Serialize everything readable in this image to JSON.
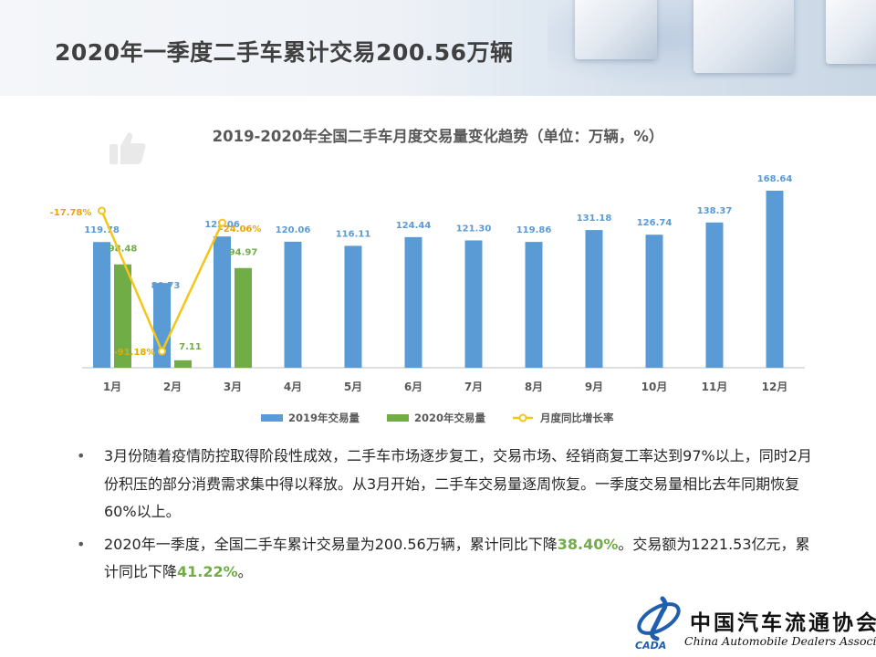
{
  "page": {
    "title": "2020年一季度二手车累计交易200.56万辆"
  },
  "chart_data": {
    "type": "bar",
    "title": "2019-2020年全国二手车月度交易量变化趋势（单位：万辆，%）",
    "categories": [
      "1月",
      "2月",
      "3月",
      "4月",
      "5月",
      "6月",
      "7月",
      "8月",
      "9月",
      "10月",
      "11月",
      "12月"
    ],
    "series": [
      {
        "name": "2019年交易量",
        "type": "bar",
        "color": "#5b9bd5",
        "values": [
          119.78,
          80.73,
          125.06,
          120.06,
          116.11,
          124.44,
          121.3,
          119.86,
          131.18,
          126.74,
          138.37,
          168.64
        ],
        "labels": [
          "119.78",
          "80.73",
          "125.06",
          "120.06",
          "116.11",
          "124.44",
          "121.30",
          "119.86",
          "131.18",
          "126.74",
          "138.37",
          "168.64"
        ]
      },
      {
        "name": "2020年交易量",
        "type": "bar",
        "color": "#70ad47",
        "values": [
          98.48,
          7.11,
          94.97,
          null,
          null,
          null,
          null,
          null,
          null,
          null,
          null,
          null
        ],
        "labels": [
          "98.48",
          "7.11",
          "94.97"
        ]
      },
      {
        "name": "月度同比增长率",
        "type": "line",
        "axis": "secondary",
        "color": "#f5c518",
        "values": [
          -17.78,
          -91.18,
          -24.06,
          null,
          null,
          null,
          null,
          null,
          null,
          null,
          null,
          null
        ],
        "labels": [
          "-17.78%",
          "-91.18%",
          "-24.06%"
        ]
      }
    ],
    "ylim": [
      0,
      180
    ],
    "y2lim": [
      -100,
      -10
    ],
    "grid": false,
    "legend": "bottom"
  },
  "bullets": [
    {
      "text": "3月份随着疫情防控取得阶段性成效，二手车市场逐步复工，交易市场、经销商复工率达到97%以上，同时2月份积压的部分消费需求集中得以释放。从3月开始，二手车交易量逐周恢复。一季度交易量相比去年同期恢复60%以上。"
    },
    {
      "prefix": " 2020年一季度，全国二手车累计交易量为200.56万辆，累计同比下降",
      "hl1": "38.40%",
      "mid": "。交易额为1221.53亿元，累计同比下降",
      "hl2": "41.22%",
      "suffix": "。"
    }
  ],
  "logo": {
    "name_cn": "中国汽车流通协会",
    "name_en": "China Automobile Dealers Association",
    "mark": "CADA"
  }
}
